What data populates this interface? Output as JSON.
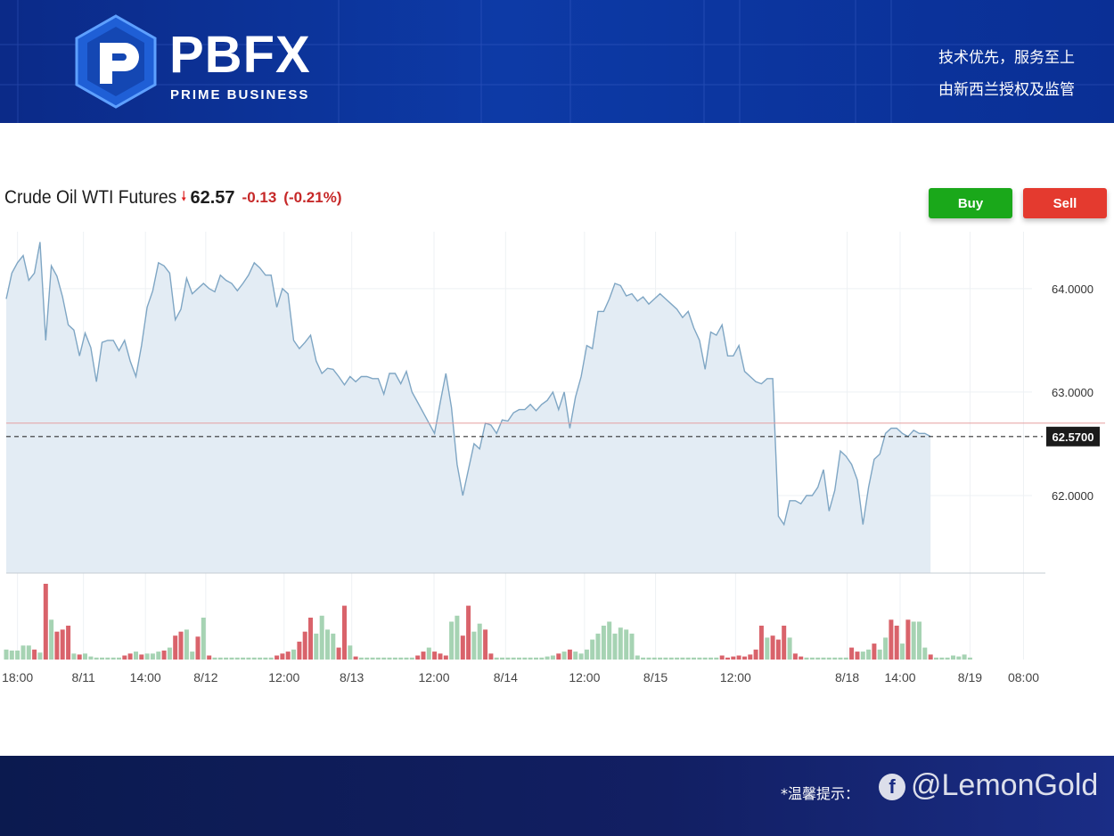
{
  "header": {
    "brand": "PBFX",
    "brand_sub": "PRIME BUSINESS",
    "slogan_1": "技术优先，服务至上",
    "slogan_2": "由新西兰授权及监管"
  },
  "instrument": {
    "name": "Crude Oil WTI Futures",
    "price": "62.57",
    "change": "-0.13",
    "change_pct": "(-0.21%)",
    "direction_icon": "arrow-down-icon"
  },
  "actions": {
    "buy_label": "Buy",
    "sell_label": "Sell"
  },
  "footer": {
    "tip": "*温馨提示：",
    "watermark": "@LemonGold"
  },
  "colors": {
    "line": "#7fa6c4",
    "area": "#e3ecf4",
    "volume_up": "#a6d3b3",
    "volume_down": "#d9636b",
    "prev_close_line": "#e6a0a0",
    "buy": "#1aa81a",
    "sell": "#e43a2f"
  },
  "chart_data": {
    "type": "area",
    "title": "Crude Oil WTI Futures",
    "y_tick_labels": [
      "64.0000",
      "63.0000",
      "62.0000"
    ],
    "y_ticks": [
      64.0,
      63.0,
      62.0
    ],
    "ylim": [
      61.25,
      64.55
    ],
    "x_tick_labels": [
      "18:00",
      "8/11",
      "14:00",
      "8/12",
      "12:00",
      "8/13",
      "12:00",
      "8/14",
      "12:00",
      "8/15",
      "12:00",
      "8/18",
      "14:00",
      "8/19",
      "08:00"
    ],
    "x_tick_positions": [
      2,
      13.7,
      24.7,
      35.4,
      49.3,
      61.3,
      75.9,
      88.6,
      102.6,
      115.2,
      129.4,
      149.2,
      158.6,
      171.0,
      180.5
    ],
    "x_range": [
      0,
      182
    ],
    "current_price_label": "62.5700",
    "current_price": 62.57,
    "prev_close": 62.7,
    "grid": true,
    "series": [
      {
        "values": [
          63.9,
          64.15,
          64.25,
          64.32,
          64.08,
          64.15,
          64.45,
          63.5,
          64.22,
          64.12,
          63.92,
          63.65,
          63.6,
          63.35,
          63.57,
          63.43,
          63.1,
          63.48,
          63.5,
          63.5,
          63.4,
          63.5,
          63.3,
          63.15,
          63.45,
          63.82,
          63.98,
          64.25,
          64.22,
          64.15,
          63.7,
          63.8,
          64.1,
          63.95,
          64.0,
          64.05,
          64.0,
          63.97,
          64.13,
          64.08,
          64.05,
          63.98,
          64.05,
          64.13,
          64.25,
          64.2,
          64.13,
          64.13,
          63.82,
          64.0,
          63.95,
          63.5,
          63.42,
          63.48,
          63.55,
          63.3,
          63.18,
          63.23,
          63.22,
          63.15,
          63.07,
          63.15,
          63.1,
          63.15,
          63.15,
          63.13,
          63.13,
          62.98,
          63.18,
          63.18,
          63.08,
          63.2,
          63.0,
          62.9,
          62.8,
          62.7,
          62.6,
          62.9,
          63.18,
          62.85,
          62.3,
          62.0,
          62.25,
          62.5,
          62.45,
          62.7,
          62.68,
          62.6,
          62.73,
          62.72,
          62.8,
          62.83,
          62.83,
          62.88,
          62.82,
          62.88,
          62.92,
          63.0,
          62.83,
          63.0,
          62.65,
          62.95,
          63.15,
          63.45,
          63.42,
          63.78,
          63.78,
          63.9,
          64.05,
          64.03,
          63.93,
          63.95,
          63.88,
          63.92,
          63.85,
          63.9,
          63.95,
          63.9,
          63.85,
          63.8,
          63.72,
          63.78,
          63.62,
          63.5,
          63.22,
          63.58,
          63.55,
          63.65,
          63.35,
          63.35,
          63.45,
          63.2,
          63.15,
          63.1,
          63.08,
          63.13,
          63.13,
          61.8,
          61.72,
          61.95,
          61.95,
          61.92,
          62.0,
          62.0,
          62.08,
          62.25,
          61.85,
          62.05,
          62.43,
          62.38,
          62.3,
          62.15,
          61.72,
          62.08,
          62.35,
          62.4,
          62.6,
          62.65,
          62.65,
          62.6,
          62.57,
          62.63,
          62.6,
          62.6,
          62.57
        ]
      }
    ],
    "volume": [
      {
        "values": [
          10,
          9,
          9,
          14,
          14,
          10,
          7,
          76,
          40,
          28,
          30,
          34,
          6,
          5,
          6,
          3,
          2,
          2,
          2,
          2,
          2,
          4,
          6,
          8,
          5,
          6,
          6,
          8,
          9,
          12,
          24,
          28,
          30,
          8,
          23,
          42,
          4,
          2,
          2,
          2,
          2,
          2,
          2,
          2,
          2,
          2,
          2,
          2,
          4,
          6,
          8,
          10,
          18,
          28,
          42,
          26,
          44,
          30,
          26,
          12,
          54,
          14,
          3,
          2,
          2,
          2,
          2,
          2,
          2,
          2,
          2,
          2,
          2,
          4,
          8,
          12,
          8,
          6,
          4,
          38,
          44,
          24,
          54,
          28,
          36,
          30,
          6,
          2,
          2,
          2,
          2,
          2,
          2,
          2,
          2,
          2,
          3,
          4,
          6,
          8,
          10,
          8,
          6,
          10,
          20,
          26,
          34,
          38,
          26,
          32,
          30,
          26,
          4,
          2,
          2,
          2,
          2,
          2,
          2,
          2,
          2,
          2,
          2,
          2,
          2,
          2,
          2,
          4,
          2,
          3,
          4,
          3,
          5,
          10,
          34,
          22,
          24,
          20,
          34,
          22,
          6,
          3,
          2,
          2,
          2,
          2,
          2,
          2,
          2,
          2,
          12,
          8,
          8,
          10,
          16,
          10,
          22,
          40,
          34,
          16,
          40,
          38,
          38,
          12,
          5,
          2,
          2,
          2,
          4,
          3,
          5,
          2
        ],
        "up": [
          1,
          1,
          1,
          1,
          1,
          0,
          1,
          0,
          1,
          0,
          0,
          0,
          1,
          0,
          1,
          1,
          1,
          1,
          1,
          1,
          1,
          0,
          0,
          1,
          0,
          1,
          1,
          1,
          0,
          1,
          0,
          0,
          1,
          1,
          0,
          1,
          0,
          1,
          1,
          1,
          1,
          1,
          1,
          1,
          1,
          1,
          1,
          1,
          0,
          0,
          0,
          1,
          0,
          0,
          0,
          1,
          1,
          1,
          1,
          0,
          0,
          1,
          0,
          1,
          1,
          1,
          1,
          1,
          1,
          1,
          1,
          1,
          1,
          0,
          0,
          1,
          0,
          0,
          0,
          1,
          1,
          0,
          0,
          1,
          1,
          0,
          0,
          1,
          1,
          1,
          1,
          1,
          1,
          1,
          1,
          1,
          1,
          1,
          0,
          1,
          0,
          1,
          1,
          1,
          1,
          1,
          1,
          1,
          1,
          1,
          1,
          1,
          1,
          1,
          1,
          1,
          1,
          1,
          1,
          1,
          1,
          1,
          1,
          1,
          1,
          1,
          1,
          0,
          0,
          0,
          0,
          0,
          0,
          0,
          0,
          1,
          0,
          0,
          0,
          1,
          0,
          0,
          1,
          1,
          1,
          1,
          1,
          1,
          1,
          1,
          0,
          0,
          1,
          1,
          0,
          1,
          1,
          0,
          0,
          1,
          0,
          1,
          1,
          1,
          0,
          1,
          1,
          1,
          1,
          1,
          1,
          1
        ]
      }
    ]
  }
}
